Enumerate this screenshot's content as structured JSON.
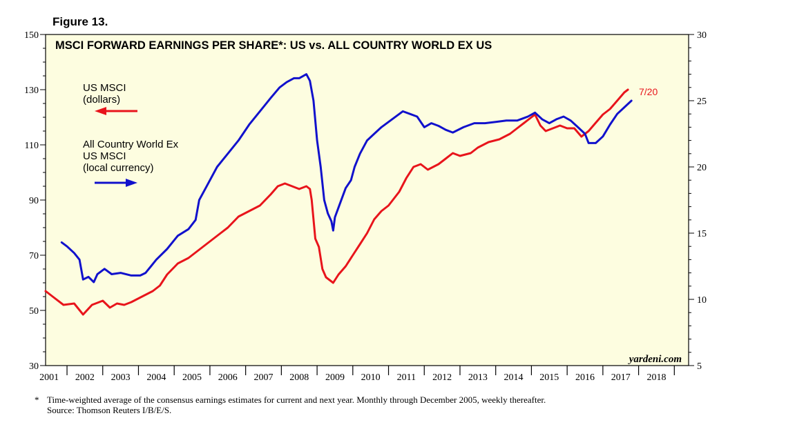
{
  "figure_label": "Figure 13.",
  "footnote": {
    "marker": "*",
    "line1": "Time-weighted average of the consensus earnings estimates for current and next year. Monthly through December 2005, weekly thereafter.",
    "line2": "Source: Thomson Reuters I/B/E/S."
  },
  "chart_data": {
    "type": "line",
    "title": "MSCI FORWARD EARNINGS PER SHARE*: US vs. ALL COUNTRY WORLD EX US",
    "watermark": "yardeni.com",
    "end_label": "7/20",
    "x_range": [
      2000.9,
      2018.9
    ],
    "x_ticks": [
      "2001",
      "2002",
      "2003",
      "2004",
      "2005",
      "2006",
      "2007",
      "2008",
      "2009",
      "2010",
      "2011",
      "2012",
      "2013",
      "2014",
      "2015",
      "2016",
      "2017",
      "2018"
    ],
    "y_left": {
      "range": [
        30,
        150
      ],
      "ticks": [
        "30",
        "50",
        "70",
        "90",
        "110",
        "130",
        "150"
      ]
    },
    "y_right": {
      "range": [
        5,
        30
      ],
      "ticks": [
        "5",
        "10",
        "15",
        "20",
        "25",
        "30"
      ]
    },
    "legend": [
      {
        "name_lines": [
          "US MSCI",
          "(dollars)"
        ],
        "color": "#e8141b",
        "axis": "left",
        "arrow": "left"
      },
      {
        "name_lines": [
          "All Country World Ex",
          "US MSCI",
          "(local currency)"
        ],
        "color": "#1111cc",
        "axis": "right",
        "arrow": "right"
      }
    ],
    "series": [
      {
        "name": "US MSCI (dollars)",
        "axis": "left",
        "color": "#e8141b",
        "points": [
          [
            2000.9,
            57
          ],
          [
            2001.1,
            55
          ],
          [
            2001.4,
            52
          ],
          [
            2001.7,
            52.5
          ],
          [
            2001.95,
            48.5
          ],
          [
            2002.2,
            52
          ],
          [
            2002.5,
            53.5
          ],
          [
            2002.7,
            51
          ],
          [
            2002.9,
            52.5
          ],
          [
            2003.1,
            52
          ],
          [
            2003.3,
            53
          ],
          [
            2003.6,
            55
          ],
          [
            2003.9,
            57
          ],
          [
            2004.1,
            59
          ],
          [
            2004.3,
            63
          ],
          [
            2004.6,
            67
          ],
          [
            2004.9,
            69
          ],
          [
            2005.2,
            72
          ],
          [
            2005.5,
            75
          ],
          [
            2005.8,
            78
          ],
          [
            2006.0,
            80
          ],
          [
            2006.3,
            84
          ],
          [
            2006.6,
            86
          ],
          [
            2006.9,
            88
          ],
          [
            2007.2,
            92
          ],
          [
            2007.4,
            95
          ],
          [
            2007.6,
            96
          ],
          [
            2007.8,
            95
          ],
          [
            2008.0,
            94
          ],
          [
            2008.2,
            95
          ],
          [
            2008.3,
            94
          ],
          [
            2008.35,
            90
          ],
          [
            2008.45,
            76
          ],
          [
            2008.55,
            73
          ],
          [
            2008.65,
            65
          ],
          [
            2008.75,
            62
          ],
          [
            2008.85,
            61
          ],
          [
            2008.95,
            60
          ],
          [
            2009.1,
            63
          ],
          [
            2009.3,
            66
          ],
          [
            2009.5,
            70
          ],
          [
            2009.7,
            74
          ],
          [
            2009.9,
            78
          ],
          [
            2010.1,
            83
          ],
          [
            2010.3,
            86
          ],
          [
            2010.5,
            88
          ],
          [
            2010.8,
            93
          ],
          [
            2011.0,
            98
          ],
          [
            2011.2,
            102
          ],
          [
            2011.4,
            103
          ],
          [
            2011.6,
            101
          ],
          [
            2011.9,
            103
          ],
          [
            2012.1,
            105
          ],
          [
            2012.3,
            107
          ],
          [
            2012.5,
            106
          ],
          [
            2012.8,
            107
          ],
          [
            2013.0,
            109
          ],
          [
            2013.3,
            111
          ],
          [
            2013.6,
            112
          ],
          [
            2013.9,
            114
          ],
          [
            2014.1,
            116
          ],
          [
            2014.3,
            118
          ],
          [
            2014.5,
            120
          ],
          [
            2014.6,
            121
          ],
          [
            2014.75,
            117
          ],
          [
            2014.9,
            115
          ],
          [
            2015.1,
            116
          ],
          [
            2015.3,
            117
          ],
          [
            2015.5,
            116
          ],
          [
            2015.7,
            116
          ],
          [
            2015.9,
            113
          ],
          [
            2016.1,
            115
          ],
          [
            2016.3,
            118
          ],
          [
            2016.5,
            121
          ],
          [
            2016.7,
            123
          ],
          [
            2016.9,
            126
          ],
          [
            2017.1,
            129
          ],
          [
            2017.2,
            130
          ]
        ]
      },
      {
        "name": "All Country World Ex US MSCI (local currency)",
        "axis": "right",
        "color": "#1111cc",
        "points": [
          [
            2001.35,
            14.3
          ],
          [
            2001.5,
            14.0
          ],
          [
            2001.7,
            13.5
          ],
          [
            2001.85,
            13.0
          ],
          [
            2001.95,
            11.5
          ],
          [
            2002.1,
            11.7
          ],
          [
            2002.25,
            11.3
          ],
          [
            2002.35,
            11.9
          ],
          [
            2002.55,
            12.3
          ],
          [
            2002.75,
            11.9
          ],
          [
            2003.0,
            12.0
          ],
          [
            2003.3,
            11.8
          ],
          [
            2003.55,
            11.8
          ],
          [
            2003.7,
            12.0
          ],
          [
            2003.85,
            12.5
          ],
          [
            2004.0,
            13.0
          ],
          [
            2004.3,
            13.8
          ],
          [
            2004.6,
            14.8
          ],
          [
            2004.9,
            15.3
          ],
          [
            2005.1,
            16.0
          ],
          [
            2005.2,
            17.5
          ],
          [
            2005.4,
            18.5
          ],
          [
            2005.7,
            20.0
          ],
          [
            2005.85,
            20.5
          ],
          [
            2006.0,
            21.0
          ],
          [
            2006.3,
            22.0
          ],
          [
            2006.6,
            23.2
          ],
          [
            2006.9,
            24.2
          ],
          [
            2007.2,
            25.2
          ],
          [
            2007.45,
            26.0
          ],
          [
            2007.65,
            26.4
          ],
          [
            2007.85,
            26.7
          ],
          [
            2008.0,
            26.7
          ],
          [
            2008.2,
            27.0
          ],
          [
            2008.3,
            26.5
          ],
          [
            2008.4,
            25.0
          ],
          [
            2008.5,
            22.0
          ],
          [
            2008.6,
            20.0
          ],
          [
            2008.7,
            17.5
          ],
          [
            2008.8,
            16.5
          ],
          [
            2008.9,
            15.9
          ],
          [
            2008.95,
            15.2
          ],
          [
            2009.0,
            16.2
          ],
          [
            2009.15,
            17.3
          ],
          [
            2009.3,
            18.4
          ],
          [
            2009.45,
            19.0
          ],
          [
            2009.55,
            20.0
          ],
          [
            2009.7,
            21.0
          ],
          [
            2009.9,
            22.0
          ],
          [
            2010.1,
            22.5
          ],
          [
            2010.3,
            23.0
          ],
          [
            2010.6,
            23.6
          ],
          [
            2010.9,
            24.2
          ],
          [
            2011.1,
            24.0
          ],
          [
            2011.3,
            23.8
          ],
          [
            2011.5,
            23.0
          ],
          [
            2011.7,
            23.3
          ],
          [
            2011.9,
            23.1
          ],
          [
            2012.1,
            22.8
          ],
          [
            2012.3,
            22.6
          ],
          [
            2012.6,
            23.0
          ],
          [
            2012.9,
            23.3
          ],
          [
            2013.2,
            23.3
          ],
          [
            2013.5,
            23.4
          ],
          [
            2013.8,
            23.5
          ],
          [
            2014.1,
            23.5
          ],
          [
            2014.4,
            23.8
          ],
          [
            2014.6,
            24.1
          ],
          [
            2014.8,
            23.6
          ],
          [
            2015.0,
            23.3
          ],
          [
            2015.2,
            23.6
          ],
          [
            2015.4,
            23.8
          ],
          [
            2015.6,
            23.5
          ],
          [
            2015.8,
            23.0
          ],
          [
            2016.0,
            22.5
          ],
          [
            2016.1,
            21.8
          ],
          [
            2016.3,
            21.8
          ],
          [
            2016.5,
            22.3
          ],
          [
            2016.7,
            23.2
          ],
          [
            2016.9,
            24.0
          ],
          [
            2017.1,
            24.5
          ],
          [
            2017.3,
            25.0
          ]
        ]
      }
    ]
  }
}
